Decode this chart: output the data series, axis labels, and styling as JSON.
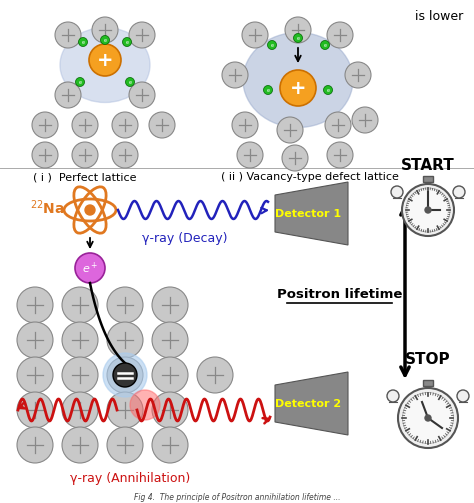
{
  "bg_color": "#ffffff",
  "top_section": {
    "label_i": "( i )  Perfect lattice",
    "label_ii": "( ii ) Vacancy-type defect lattice",
    "is_lower_text": "is lower"
  },
  "bottom_section": {
    "na22_label": "$^{22}$Na",
    "gamma_decay_label": "γ-ray (Decay)",
    "gamma_annihilation_label": "γ-ray (Annihilation)",
    "positron_label": "e$^+$",
    "detector1_label": "Detector 1",
    "detector2_label": "Detector 2",
    "positron_lifetime_label": "Positron lifetime",
    "start_label": "START",
    "stop_label": "STOP"
  },
  "colors": {
    "orange": "#e07820",
    "blue_wave": "#2222bb",
    "red_wave": "#cc1111",
    "purple": "#cc55cc",
    "gray_detector": "#888888",
    "yellow_text": "#ffff00",
    "atom_gray": "#c8c8c8",
    "atom_border": "#888888",
    "green_dot": "#22bb22",
    "black": "#000000",
    "light_blue_cloud": "#99aabb"
  }
}
